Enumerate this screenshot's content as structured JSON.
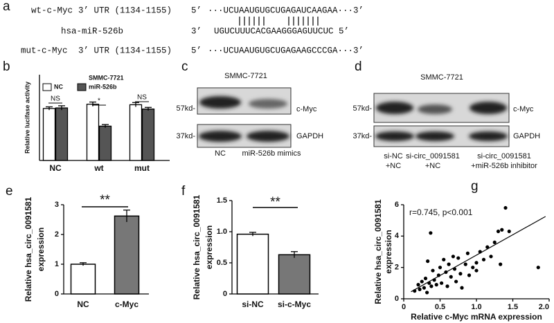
{
  "panel_labels": [
    "a",
    "b",
    "c",
    "d",
    "e",
    "f",
    "g"
  ],
  "sequences": [
    {
      "name": "wt-c-Myc",
      "region": "3’ UTR (1134-1155)",
      "end": "5’",
      "sequence": "···UCUAAUGUGCUGAGAUCAAGAA···3’"
    },
    {
      "name": "hsa-miR-526b",
      "end": "3’",
      "sequence": "UGUCUUUCACGAAGGGAGUUCUC 5’"
    },
    {
      "name": "mut-c-Myc",
      "region": "3’ UTR (1134-1155)",
      "end": "5’",
      "sequence": "···UCUAAUGUGCUGAGAAGCCCGA···3’"
    }
  ],
  "blots": [
    {
      "title": "SMMC-7721",
      "markers": [
        "57kd-",
        "37kd-"
      ],
      "proteins": [
        "c-Myc",
        "GAPDH"
      ],
      "lanes": [
        [
          "NC"
        ],
        [
          "miR-526b mimics"
        ]
      ]
    },
    {
      "title": "SMMC-7721",
      "markers": [
        "57kd-",
        "37kd-"
      ],
      "proteins": [
        "c-Myc",
        "GAPDH"
      ],
      "lanes": [
        [
          "si-NC",
          "+NC"
        ],
        [
          "si-circ_0091581",
          "+NC"
        ],
        [
          "si-circ_0091581",
          "+miR-526b inhibitor"
        ]
      ]
    }
  ],
  "chart_data": [
    {
      "type": "bar",
      "ylabel": [
        "Relative lucifase activity"
      ],
      "legend_title": "SMMC-7721",
      "categories": [
        "NC",
        "wt",
        "mut"
      ],
      "series": [
        {
          "name": "NC",
          "color": "#ffffff",
          "values": [
            0.97,
            1.05,
            1.04
          ],
          "errors": [
            0.03,
            0.04,
            0.04
          ]
        },
        {
          "name": "miR-526b",
          "color": "#555555",
          "values": [
            0.98,
            0.64,
            0.96
          ],
          "errors": [
            0.04,
            0.03,
            0.03
          ]
        }
      ],
      "annotations": [
        "NS",
        "*",
        "NS"
      ],
      "ylim": [
        0,
        1.6
      ]
    },
    {
      "type": "bar",
      "ylabel": [
        "Relative hsa_circ_0091581",
        "expression"
      ],
      "categories": [
        "NC",
        "c-Myc"
      ],
      "values": [
        1.0,
        2.62
      ],
      "errors": [
        0.05,
        0.2
      ],
      "colors": [
        "#ffffff",
        "#777777"
      ],
      "annotations": [
        "**"
      ],
      "ylim": [
        0,
        3
      ],
      "yticks": [
        0,
        1,
        2,
        3
      ]
    },
    {
      "type": "bar",
      "ylabel": [
        "Relative hsa_circ_0091581",
        "expression"
      ],
      "categories": [
        "si-NC",
        "si-c-Myc"
      ],
      "values": [
        0.96,
        0.63
      ],
      "errors": [
        0.03,
        0.05
      ],
      "colors": [
        "#ffffff",
        "#777777"
      ],
      "annotations": [
        "**"
      ],
      "ylim": [
        0,
        1.5
      ],
      "yticks": [
        0,
        0.5,
        {
          "value": 1,
          "label": "1.0"
        },
        1.5
      ]
    },
    {
      "type": "scatter",
      "xlabel": "Relative c-Myc mRNA expression",
      "ylabel": [
        "Relative hsa_circ_0091581",
        "expression"
      ],
      "annotations": [
        "r=0.745, p<0.001"
      ],
      "color": "#000000",
      "x": [
        0.15,
        0.2,
        0.22,
        0.25,
        0.28,
        0.3,
        0.32,
        0.33,
        0.35,
        0.37,
        0.38,
        0.4,
        0.42,
        0.45,
        0.48,
        0.5,
        0.52,
        0.55,
        0.58,
        0.6,
        0.62,
        0.65,
        0.68,
        0.7,
        0.72,
        0.75,
        0.78,
        0.8,
        0.85,
        0.88,
        0.9,
        0.95,
        1.0,
        1.0,
        1.05,
        1.1,
        1.15,
        1.2,
        1.25,
        1.3,
        1.33,
        1.35,
        1.4,
        1.45,
        1.85
      ],
      "y": [
        0.5,
        0.9,
        0.6,
        1.1,
        0.7,
        1.3,
        0.4,
        2.4,
        1.0,
        4.2,
        0.8,
        1.8,
        1.2,
        0.9,
        1.5,
        2.0,
        1.0,
        2.5,
        1.7,
        0.8,
        2.2,
        1.4,
        2.7,
        1.9,
        1.1,
        2.6,
        1.6,
        0.7,
        2.2,
        2.9,
        1.5,
        2.0,
        1.8,
        2.3,
        3.0,
        2.5,
        3.3,
        2.7,
        3.6,
        4.3,
        2.2,
        4.4,
        5.8,
        4.3,
        2.0
      ],
      "fit": {
        "x": [
          0.1,
          1.95
        ],
        "y": [
          0.45,
          5.25
        ]
      },
      "xlim": [
        0,
        2
      ],
      "xticks": [
        0,
        0.5,
        {
          "value": 1,
          "label": "1.0"
        },
        1.5,
        {
          "value": 2,
          "label": "2.0"
        }
      ],
      "ylim": [
        0,
        6
      ],
      "yticks": [
        0,
        2,
        4,
        6
      ]
    }
  ]
}
